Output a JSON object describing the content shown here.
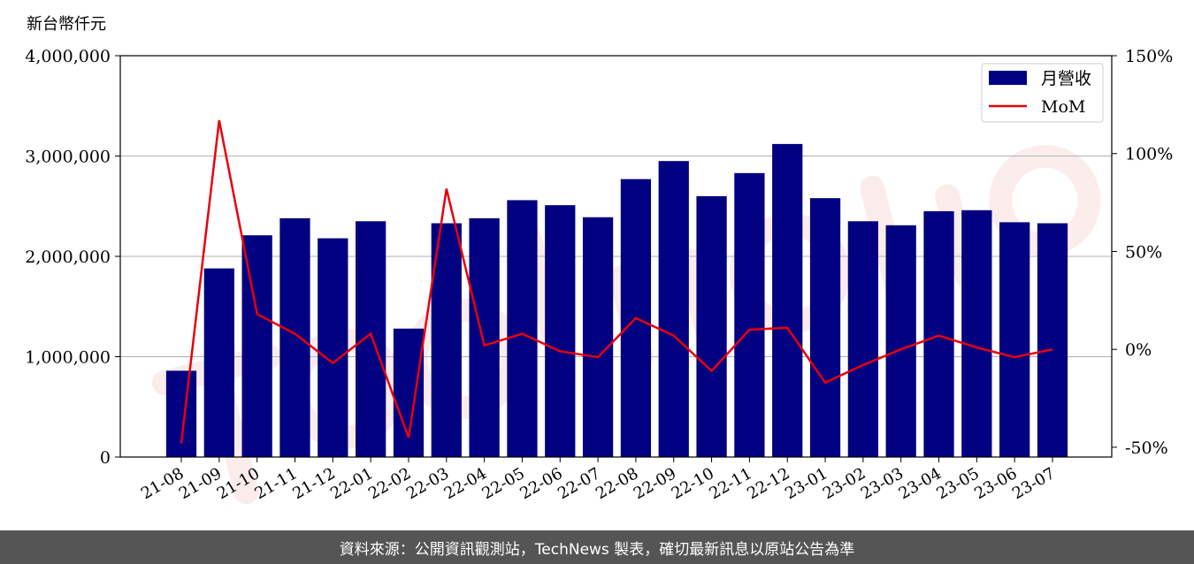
{
  "chart_data": {
    "type": "bar",
    "categories": [
      "21-08",
      "21-09",
      "21-10",
      "21-11",
      "21-12",
      "22-01",
      "22-02",
      "22-03",
      "22-04",
      "22-05",
      "22-06",
      "22-07",
      "22-08",
      "22-09",
      "22-10",
      "22-11",
      "22-12",
      "23-01",
      "23-02",
      "23-03",
      "23-04",
      "23-05",
      "23-06",
      "23-07"
    ],
    "series": [
      {
        "name": "月營收",
        "axis": "left",
        "type": "bar",
        "color": "#000080",
        "values": [
          860000,
          1880000,
          2210000,
          2380000,
          2180000,
          2350000,
          1280000,
          2330000,
          2380000,
          2560000,
          2510000,
          2390000,
          2770000,
          2950000,
          2600000,
          2830000,
          3120000,
          2580000,
          2350000,
          2310000,
          2450000,
          2460000,
          2340000,
          2330000
        ]
      },
      {
        "name": "MoM",
        "axis": "right",
        "type": "line",
        "color": "#e8000b",
        "values": [
          -48,
          117,
          18,
          8,
          -7,
          8,
          -45,
          82,
          2,
          8,
          -1,
          -4,
          16,
          7,
          -11,
          10,
          11,
          -17,
          -8,
          0,
          7,
          1,
          -4,
          0
        ]
      }
    ],
    "ylabel": "新台幣仟元",
    "ylim": [
      0,
      4000000
    ],
    "y_ticks": [
      0,
      1000000,
      2000000,
      3000000,
      4000000
    ],
    "y_tick_labels": [
      "0",
      "1,000,000",
      "2,000,000",
      "3,000,000",
      "4,000,000"
    ],
    "y2lim": [
      -55,
      150
    ],
    "y2_ticks": [
      -50,
      0,
      50,
      100,
      150
    ],
    "y2_tick_labels": [
      "-50%",
      "0%",
      "50%",
      "100%",
      "150%"
    ],
    "grid": true,
    "legend_position": "top-right"
  },
  "footer": {
    "source_text": "資料來源：公開資訊觀測站，TechNews 製表，確切最新訊息以原站公告為準"
  }
}
